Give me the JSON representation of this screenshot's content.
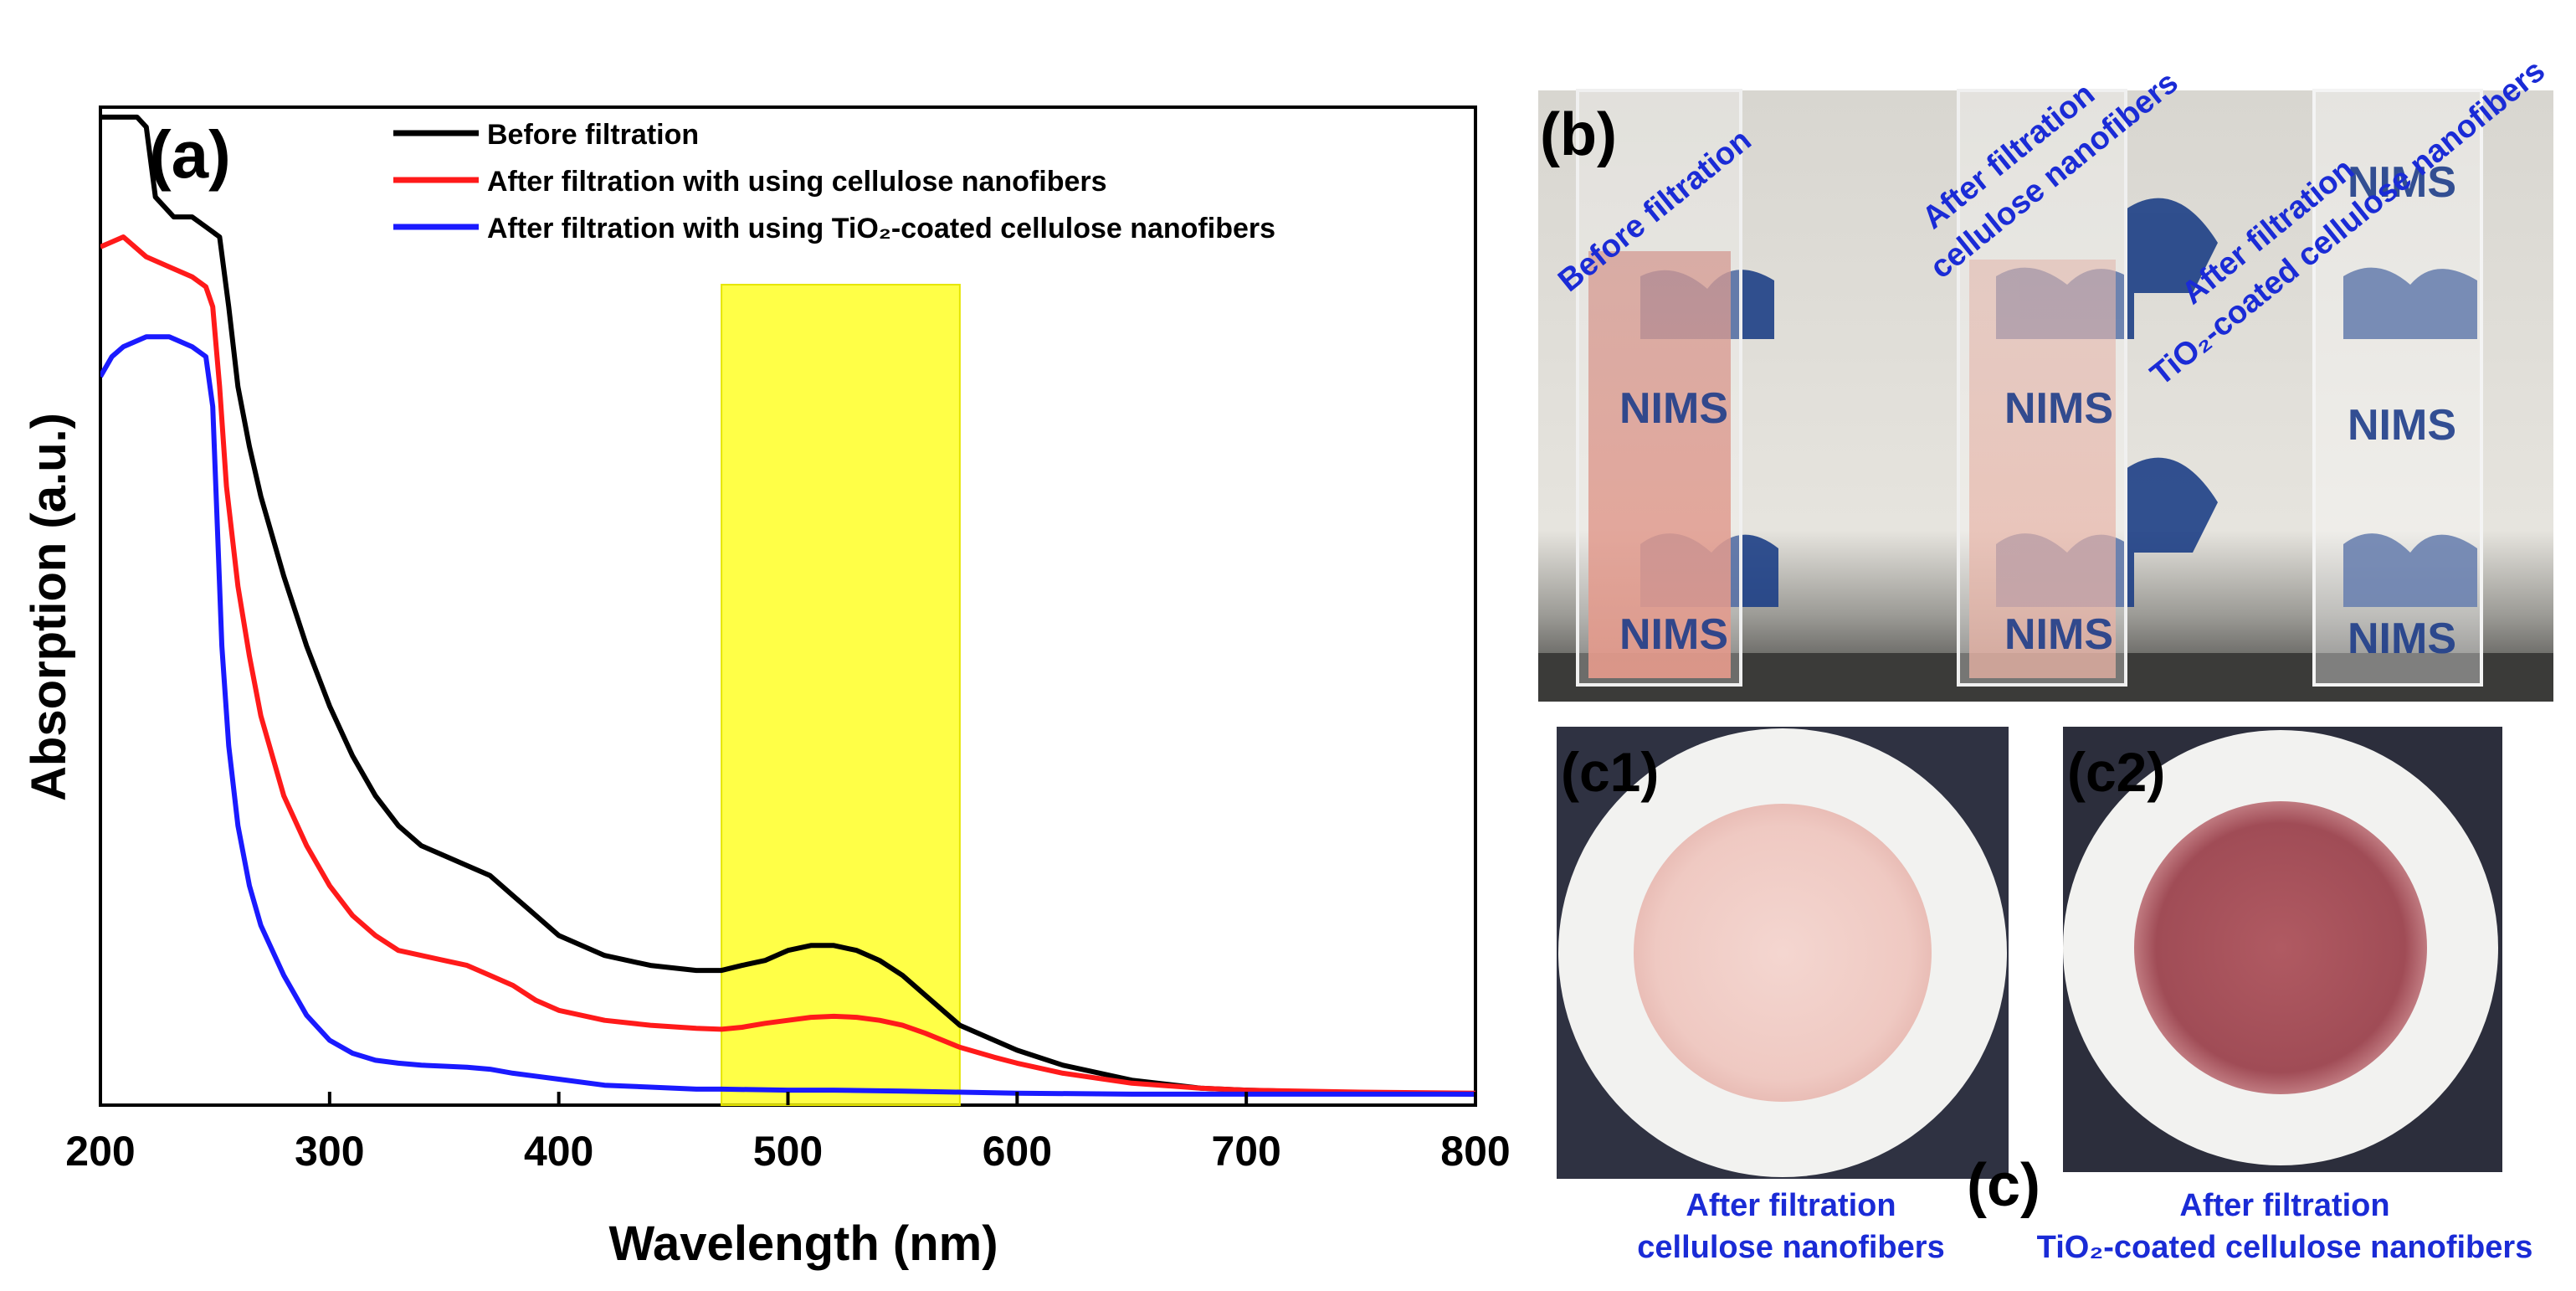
{
  "chart_data": {
    "type": "line",
    "panel_label": "(a)",
    "xlabel": "Wavelength (nm)",
    "ylabel": "Absorption (a.u.)",
    "xlim": [
      200,
      800
    ],
    "ylim": [
      0,
      1
    ],
    "xticks": [
      200,
      300,
      400,
      500,
      600,
      700,
      800
    ],
    "xtick_labels": [
      "200",
      "300",
      "400",
      "500",
      "600",
      "700",
      "800"
    ],
    "y_tick_labels_shown": false,
    "legend_position": "top",
    "highlight_band": {
      "x_start": 471,
      "x_end": 575,
      "color": "#ffff00"
    },
    "series": [
      {
        "name": "Before filtration",
        "color": "#000000",
        "x": [
          200,
          210,
          216,
          220,
          224,
          232,
          240,
          246,
          252,
          256,
          260,
          265,
          270,
          280,
          290,
          300,
          310,
          320,
          330,
          340,
          350,
          360,
          370,
          380,
          390,
          400,
          420,
          440,
          460,
          471,
          480,
          490,
          500,
          510,
          520,
          530,
          540,
          550,
          560,
          575,
          590,
          600,
          620,
          650,
          680,
          700,
          750,
          800
        ],
        "y": [
          0.99,
          0.99,
          0.99,
          0.98,
          0.91,
          0.89,
          0.89,
          0.88,
          0.87,
          0.8,
          0.72,
          0.66,
          0.61,
          0.53,
          0.46,
          0.4,
          0.35,
          0.31,
          0.28,
          0.26,
          0.25,
          0.24,
          0.23,
          0.21,
          0.19,
          0.17,
          0.15,
          0.14,
          0.135,
          0.135,
          0.14,
          0.145,
          0.155,
          0.16,
          0.16,
          0.155,
          0.145,
          0.13,
          0.11,
          0.08,
          0.065,
          0.055,
          0.04,
          0.025,
          0.017,
          0.015,
          0.012,
          0.011
        ]
      },
      {
        "name": "After filtration with using cellulose nanofibers",
        "color": "#ff1a1a",
        "x": [
          200,
          210,
          220,
          230,
          240,
          246,
          249,
          252,
          255,
          260,
          265,
          270,
          280,
          290,
          300,
          310,
          320,
          330,
          340,
          350,
          360,
          370,
          380,
          390,
          400,
          420,
          440,
          460,
          471,
          480,
          490,
          500,
          510,
          520,
          530,
          540,
          550,
          560,
          575,
          590,
          600,
          620,
          650,
          680,
          700,
          750,
          800
        ],
        "y": [
          0.86,
          0.87,
          0.85,
          0.84,
          0.83,
          0.82,
          0.8,
          0.72,
          0.62,
          0.52,
          0.45,
          0.39,
          0.31,
          0.26,
          0.22,
          0.19,
          0.17,
          0.155,
          0.15,
          0.145,
          0.14,
          0.13,
          0.12,
          0.105,
          0.095,
          0.085,
          0.08,
          0.077,
          0.076,
          0.078,
          0.082,
          0.085,
          0.088,
          0.089,
          0.088,
          0.085,
          0.08,
          0.072,
          0.058,
          0.048,
          0.042,
          0.032,
          0.022,
          0.017,
          0.015,
          0.013,
          0.012
        ]
      },
      {
        "name": "After filtration with using TiO₂-coated cellulose nanofibers",
        "color": "#1a1aff",
        "x": [
          200,
          205,
          210,
          220,
          230,
          240,
          246,
          249,
          251,
          253,
          256,
          260,
          265,
          270,
          280,
          290,
          300,
          310,
          320,
          330,
          340,
          350,
          360,
          370,
          380,
          400,
          420,
          440,
          460,
          471,
          500,
          520,
          550,
          575,
          600,
          650,
          700,
          750,
          800
        ],
        "y": [
          0.73,
          0.75,
          0.76,
          0.77,
          0.77,
          0.76,
          0.75,
          0.7,
          0.58,
          0.46,
          0.36,
          0.28,
          0.22,
          0.18,
          0.13,
          0.09,
          0.065,
          0.052,
          0.045,
          0.042,
          0.04,
          0.039,
          0.038,
          0.036,
          0.032,
          0.026,
          0.02,
          0.018,
          0.016,
          0.016,
          0.015,
          0.015,
          0.014,
          0.013,
          0.012,
          0.011,
          0.011,
          0.011,
          0.011
        ]
      }
    ]
  },
  "photos": {
    "b": {
      "panel_label": "(b)",
      "captions": [
        {
          "lines": [
            "Before filtration"
          ]
        },
        {
          "lines": [
            "After filtration",
            "cellulose nanofibers"
          ]
        },
        {
          "lines": [
            "After filtration",
            "TiO₂-coated cellulose nanofibers"
          ]
        }
      ],
      "logo_text": "NIMS"
    },
    "c": {
      "panel_label": "(c)",
      "c1": {
        "panel_label": "(c1)",
        "caption_lines": [
          "After filtration",
          "cellulose nanofibers"
        ]
      },
      "c2": {
        "panel_label": "(c2)",
        "caption_lines": [
          "After filtration",
          "TiO₂-coated cellulose nanofibers"
        ]
      }
    }
  }
}
